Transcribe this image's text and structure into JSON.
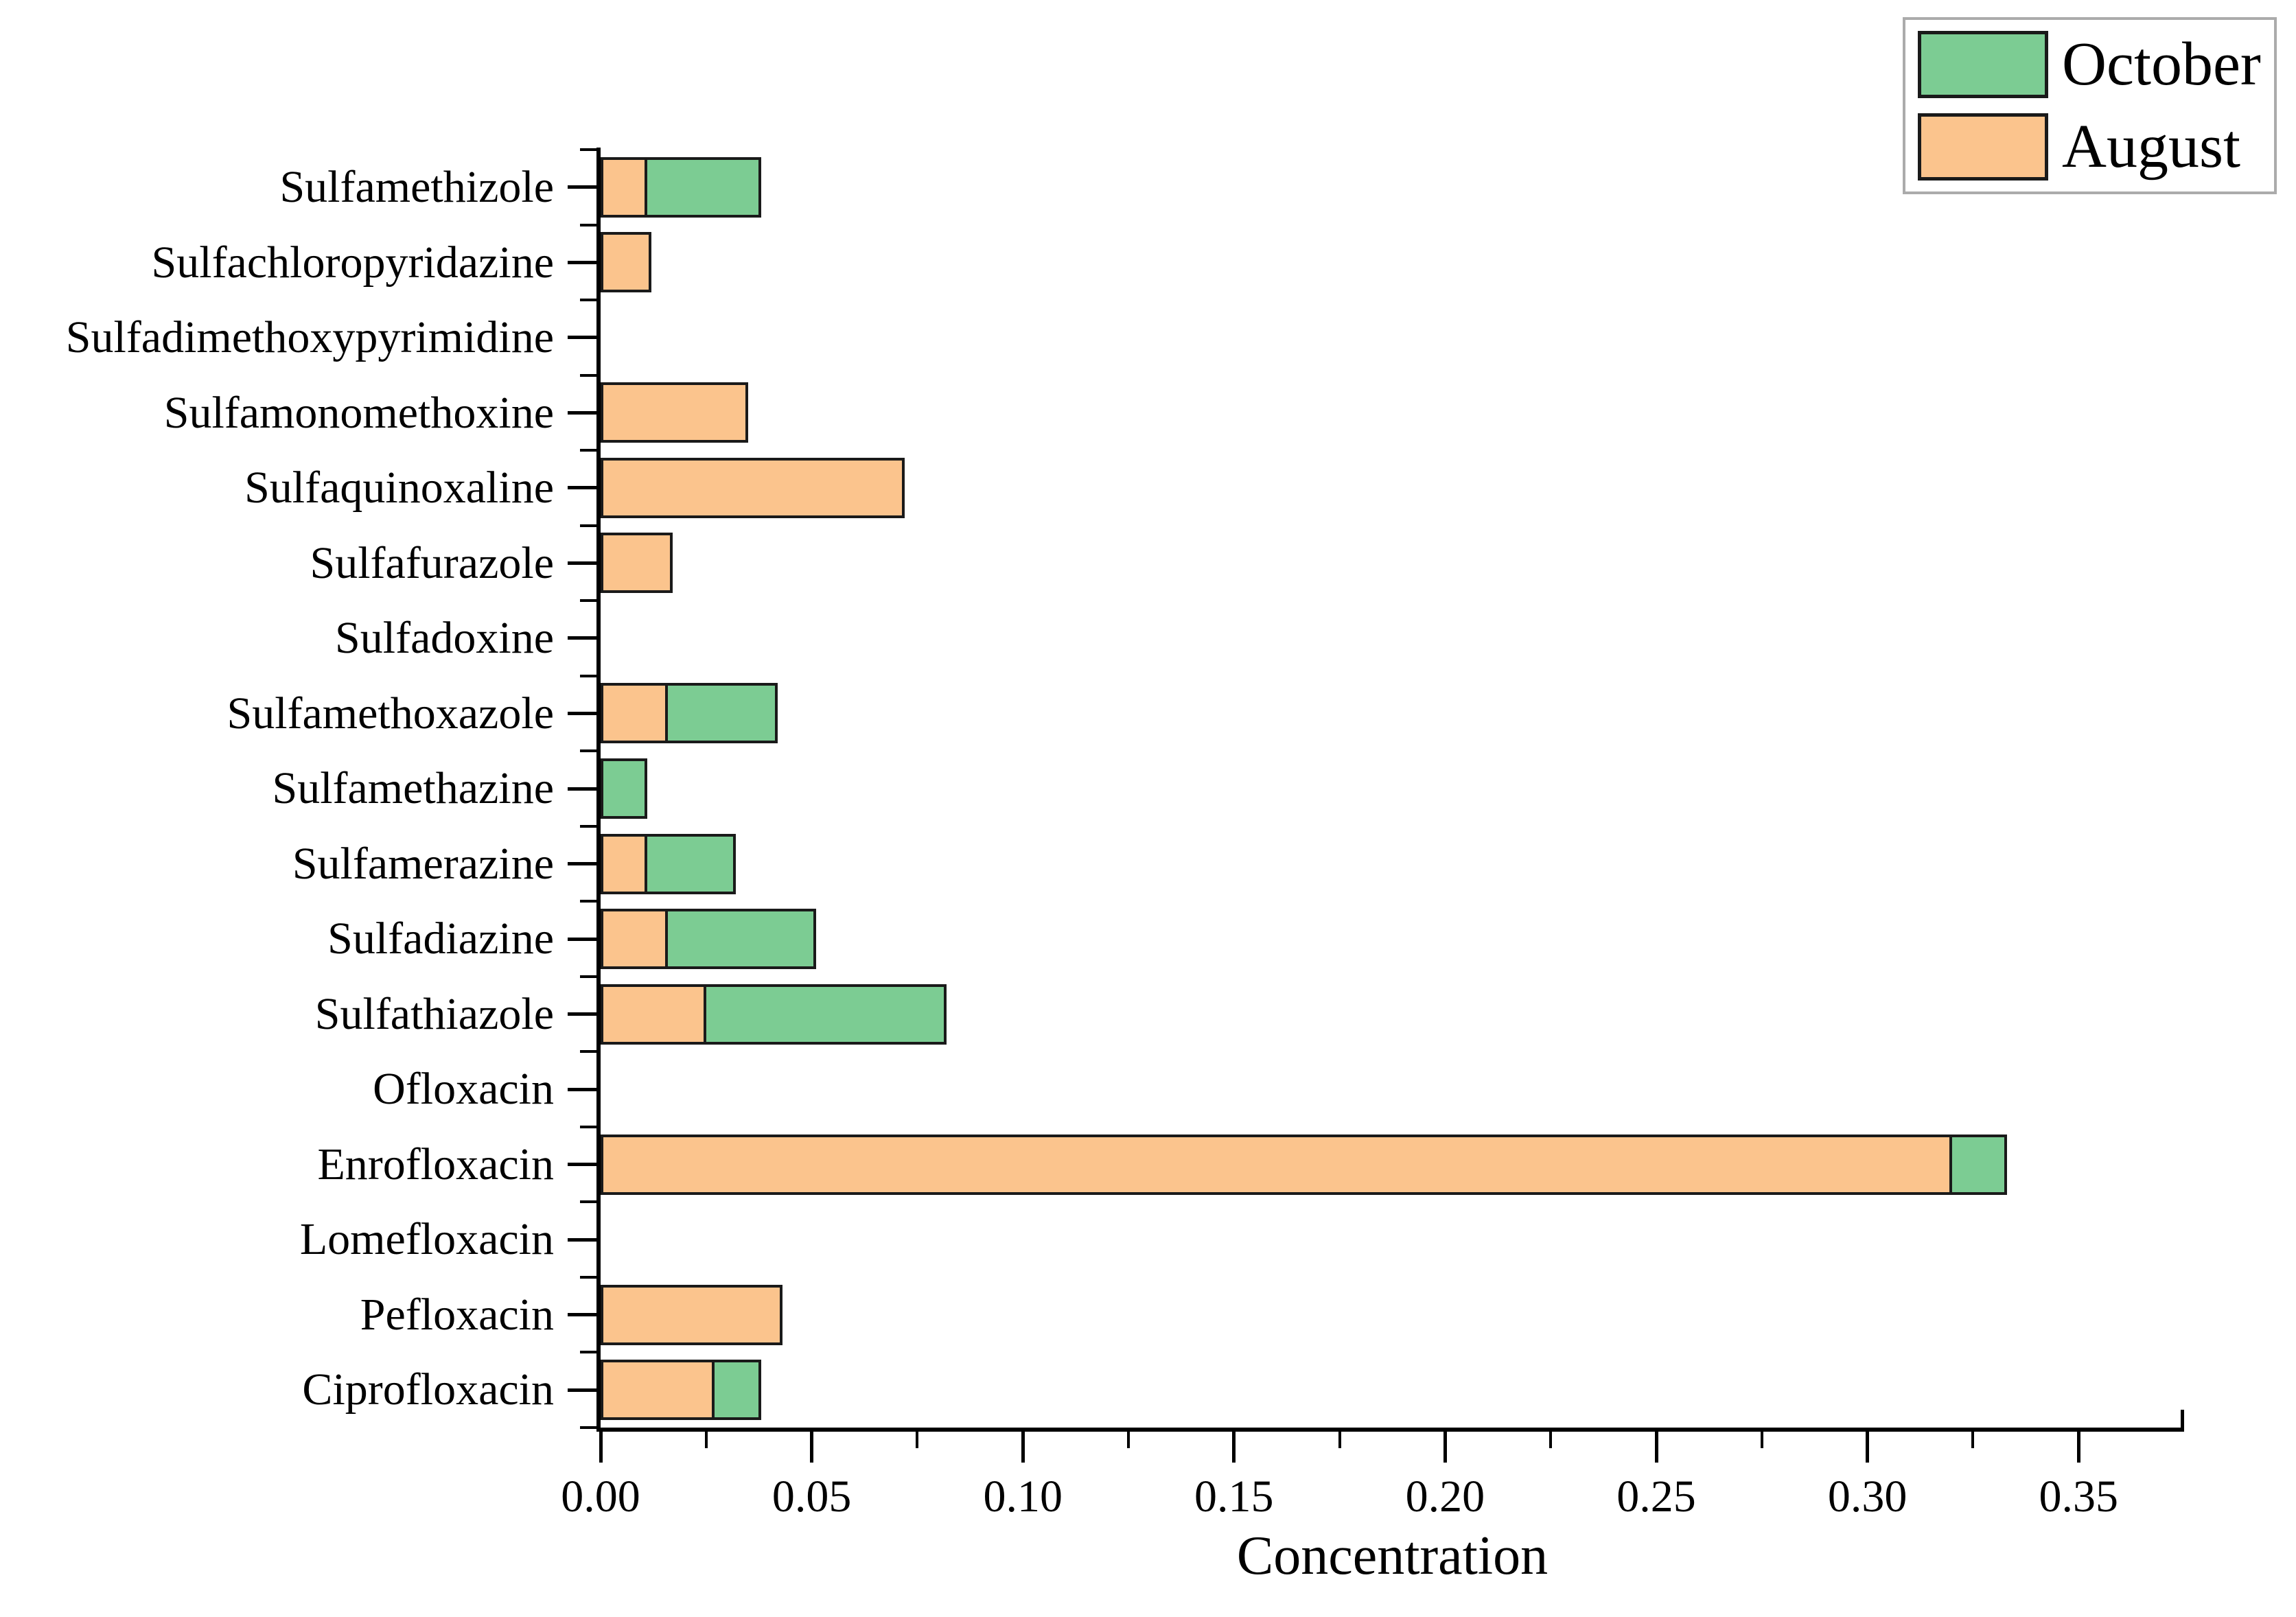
{
  "legend": {
    "items": [
      {
        "label": "October",
        "color": "#7ccc93"
      },
      {
        "label": "August",
        "color": "#fbc48d"
      }
    ]
  },
  "chart_data": {
    "type": "bar",
    "orientation": "horizontal",
    "stacked": true,
    "title": "",
    "xlabel": "Concentration",
    "ylabel": "",
    "xlim": [
      0,
      0.375
    ],
    "x_major_ticks": [
      "0.00",
      "0.05",
      "0.10",
      "0.15",
      "0.20",
      "0.25",
      "0.30",
      "0.35"
    ],
    "x_major_tick_values": [
      0,
      0.05,
      0.1,
      0.15,
      0.2,
      0.25,
      0.3,
      0.35
    ],
    "x_minor_tick_step": 0.025,
    "grid": false,
    "legend_position": "top-right",
    "bar_outline_color": "#1a1a1a",
    "categories": [
      "Sulfamethizole",
      "Sulfachloropyridazine",
      "Sulfadimethoxypyrimidine",
      "Sulfamonomethoxine",
      "Sulfaquinoxaline",
      "Sulfafurazole",
      "Sulfadoxine",
      "Sulfamethoxazole",
      "Sulfamethazine",
      "Sulfamerazine",
      "Sulfadiazine",
      "Sulfathiazole",
      "Ofloxacin",
      "Enrofloxacin",
      "Lomefloxacin",
      "Pefloxacin",
      "Ciprofloxacin"
    ],
    "series": [
      {
        "name": "August",
        "color": "#fbc48d",
        "values": [
          0.011,
          0.012,
          0,
          0.035,
          0.072,
          0.017,
          0,
          0.016,
          0,
          0.011,
          0.016,
          0.025,
          0,
          0.32,
          0,
          0.043,
          0.027
        ]
      },
      {
        "name": "October",
        "color": "#7ccc93",
        "values": [
          0.027,
          0,
          0,
          0,
          0,
          0,
          0,
          0.026,
          0.011,
          0.021,
          0.035,
          0.057,
          0,
          0.013,
          0,
          0,
          0.011
        ]
      }
    ]
  }
}
